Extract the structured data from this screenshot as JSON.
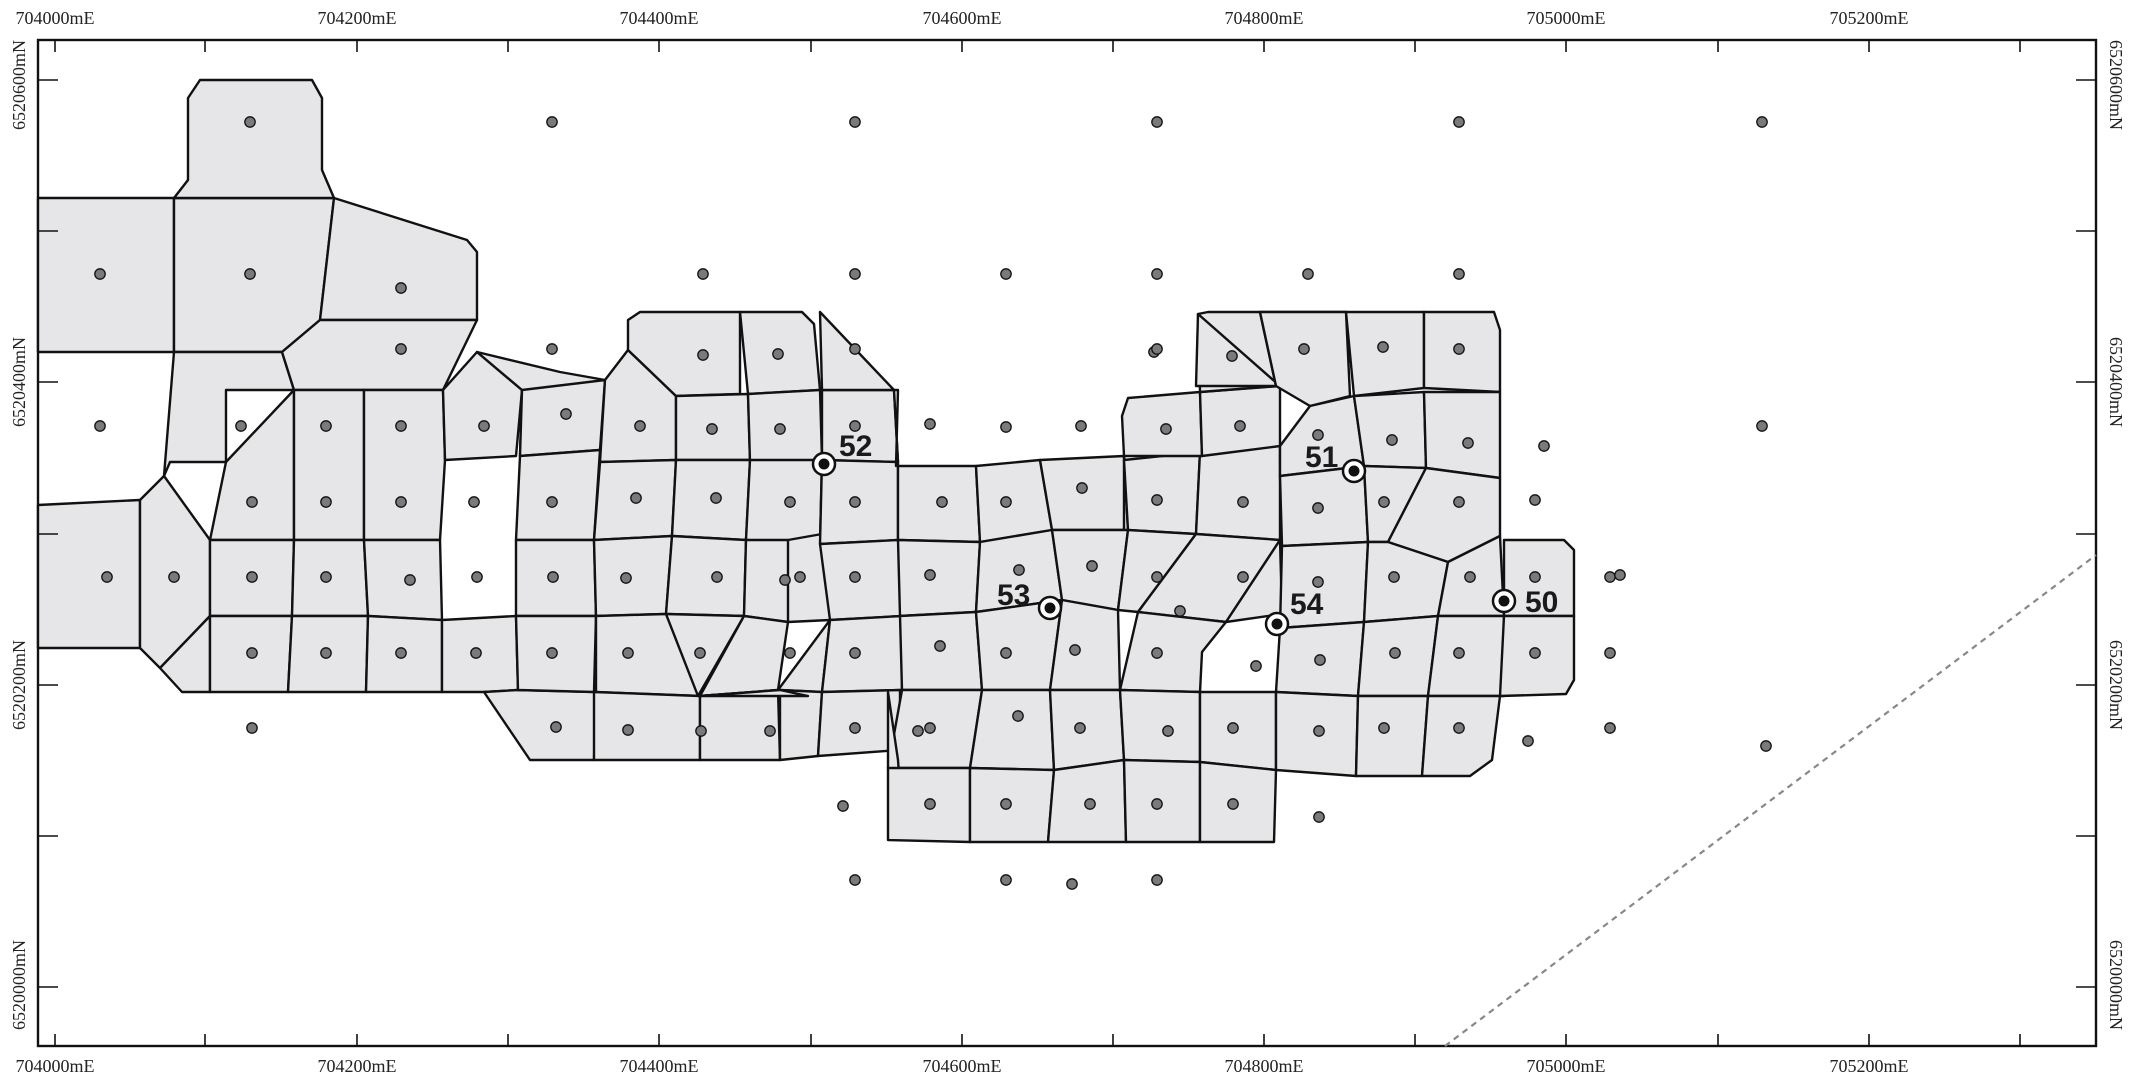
{
  "map": {
    "x_axis": {
      "top_labels": [
        "704000mE",
        "704200mE",
        "704400mE",
        "704600mE",
        "704800mE",
        "705000mE",
        "705200mE"
      ],
      "bottom_labels": [
        "704000mE",
        "704200mE",
        "704400mE",
        "704600mE",
        "704800mE",
        "705000mE",
        "705200mE"
      ]
    },
    "y_axis": {
      "left_labels": [
        "6520600mN",
        "6520400mN",
        "6520200mN",
        "6520000mN"
      ],
      "right_labels": [
        "6520600mN",
        "6520400mN",
        "6520200mN",
        "6520000mN"
      ]
    },
    "wells": [
      {
        "id": "50",
        "label": "50"
      },
      {
        "id": "51",
        "label": "51"
      },
      {
        "id": "52",
        "label": "52"
      },
      {
        "id": "53",
        "label": "53"
      },
      {
        "id": "54",
        "label": "54"
      }
    ],
    "colors": {
      "cell_fill": "#e6e6e8",
      "cell_outline": "#111111",
      "sample_point": "#7a7a7a",
      "boundary_line": "#888888"
    }
  }
}
